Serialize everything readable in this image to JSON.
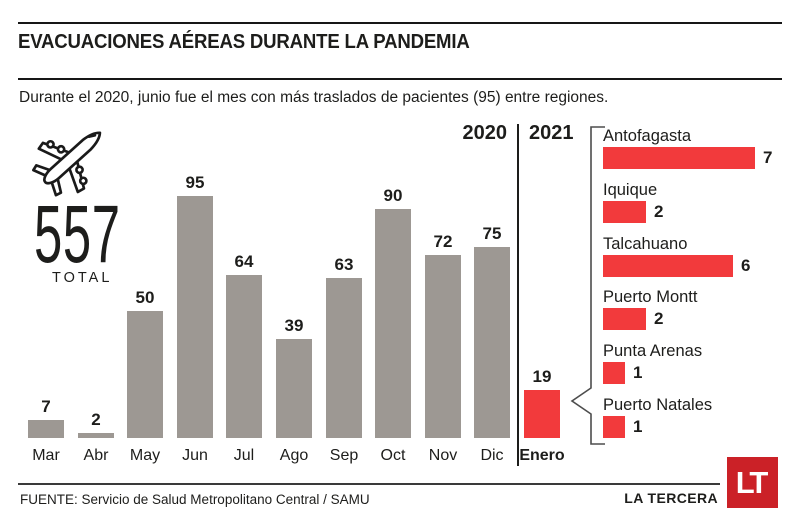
{
  "header": {
    "title": "EVACUACIONES AÉREAS DURANTE LA PANDEMIA",
    "subtitle": "Durante el 2020, junio fue el mes con más traslados de pacientes (95) entre regiones."
  },
  "summary": {
    "icon": "airplane-icon",
    "total_value": "557",
    "total_label": "TOTAL"
  },
  "years": {
    "y2020": "2020",
    "y2021": "2021"
  },
  "chart_data": [
    {
      "type": "bar",
      "name": "monthly-evacuations",
      "categories": [
        "Mar",
        "Abr",
        "May",
        "Jun",
        "Jul",
        "Ago",
        "Sep",
        "Oct",
        "Nov",
        "Dic",
        "Enero"
      ],
      "values": [
        7,
        2,
        50,
        95,
        64,
        39,
        63,
        90,
        72,
        75,
        19
      ],
      "highlight_index": 10,
      "bar_color": "#9d9893",
      "highlight_color": "#f23a3c",
      "ylim": [
        0,
        95
      ],
      "value_labels": true,
      "grid": false,
      "note": "2020 months in gray, Enero 2021 in red"
    },
    {
      "type": "bar",
      "orientation": "horizontal",
      "name": "january-2021-destinations",
      "categories": [
        "Antofagasta",
        "Iquique",
        "Talcahuano",
        "Puerto Montt",
        "Punta Arenas",
        "Puerto Natales"
      ],
      "values": [
        7,
        2,
        6,
        2,
        1,
        1
      ],
      "bar_color": "#f23a3c",
      "value_labels": true,
      "grid": false
    }
  ],
  "footer": {
    "source": "FUENTE: Servicio de Salud Metropolitano Central / SAMU",
    "brand": "LA TERCERA",
    "logo_text": "LT",
    "logo_color": "#cb2127"
  }
}
